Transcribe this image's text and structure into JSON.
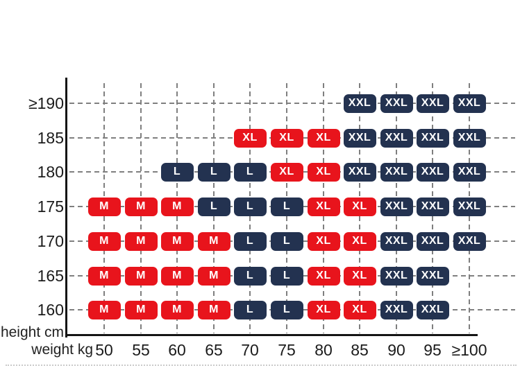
{
  "chart_data": {
    "type": "heatmap",
    "description": "Clothing size chart mapping body height (cm) and weight (kg) to garment sizes",
    "x_axis": {
      "label": "weight kg",
      "ticks": [
        "50",
        "55",
        "60",
        "65",
        "70",
        "75",
        "80",
        "85",
        "90",
        "95",
        "≥100"
      ]
    },
    "y_axis": {
      "label": "height cm",
      "ticks": [
        "≥190",
        "185",
        "180",
        "175",
        "170",
        "165",
        "160"
      ]
    },
    "cell_matrix": [
      [
        "",
        "",
        "",
        "",
        "",
        "",
        "",
        "XXL",
        "XXL",
        "XXL",
        "XXL"
      ],
      [
        "",
        "",
        "",
        "",
        "XL",
        "XL",
        "XL",
        "XXL",
        "XXL",
        "XXL",
        "XXL"
      ],
      [
        "",
        "",
        "L",
        "L",
        "L",
        "XL",
        "XL",
        "XXL",
        "XXL",
        "XXL",
        "XXL"
      ],
      [
        "M",
        "M",
        "M",
        "L",
        "L",
        "L",
        "XL",
        "XL",
        "XXL",
        "XXL",
        "XXL"
      ],
      [
        "M",
        "M",
        "M",
        "M",
        "L",
        "L",
        "XL",
        "XL",
        "XXL",
        "XXL",
        "XXL"
      ],
      [
        "M",
        "M",
        "M",
        "M",
        "L",
        "L",
        "XL",
        "XL",
        "XXL",
        "XXL",
        ""
      ],
      [
        "M",
        "M",
        "M",
        "M",
        "L",
        "L",
        "XL",
        "XL",
        "XXL",
        "XXL",
        ""
      ]
    ],
    "size_colors": {
      "M": "#e8141c",
      "L": "#233250",
      "XL": "#e8141c",
      "XXL": "#233250"
    },
    "badge_text_color": "#ffffff",
    "grid_line_color": "#7f7f7f",
    "axis_line_color": "#141414",
    "tick_text_color": "#1b1b1b",
    "grid": "dashed",
    "legend_position": "none"
  }
}
